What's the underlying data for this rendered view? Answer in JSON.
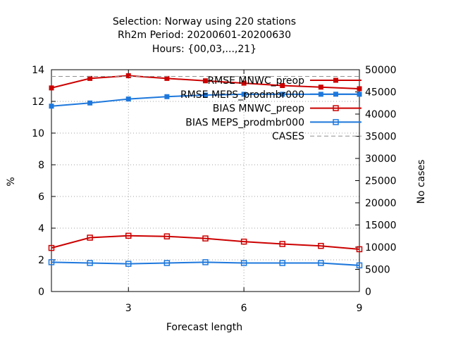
{
  "chart_data": {
    "type": "line",
    "title_lines": [
      "Selection: Norway using   220 stations",
      "Rh2m   Period: 20200601-20200630",
      "Hours: {00,03,...,21}"
    ],
    "xlabel": "Forecast length",
    "ylabel": "%",
    "y2label": "No cases",
    "xlim": [
      1,
      9
    ],
    "ylim": [
      0,
      14
    ],
    "y2lim": [
      0,
      50000
    ],
    "xticks": [
      3,
      6,
      9
    ],
    "yticks": [
      0,
      2,
      4,
      6,
      8,
      10,
      12,
      14
    ],
    "y2ticks": [
      0,
      5000,
      10000,
      15000,
      20000,
      25000,
      30000,
      35000,
      40000,
      45000,
      50000
    ],
    "grid": true,
    "legend_position": "top-right",
    "x": [
      1,
      2,
      3,
      4,
      5,
      6,
      7,
      8,
      9
    ],
    "series": [
      {
        "name": "RMSE MNWC_preop",
        "axis": "left",
        "color": "#cc0000",
        "marker": "filled-square",
        "values": [
          12.85,
          13.45,
          13.62,
          13.45,
          13.3,
          13.15,
          13.0,
          12.9,
          12.8
        ]
      },
      {
        "name": "RMSE MEPS_prodmbr000",
        "axis": "left",
        "color": "#1e78dc",
        "marker": "filled-square",
        "values": [
          11.7,
          11.9,
          12.15,
          12.3,
          12.4,
          12.45,
          12.45,
          12.45,
          12.45
        ]
      },
      {
        "name": "BIAS MNWC_preop",
        "axis": "left",
        "color": "#cc0000",
        "marker": "open-square",
        "values": [
          2.75,
          3.4,
          3.52,
          3.48,
          3.35,
          3.15,
          3.0,
          2.88,
          2.67
        ]
      },
      {
        "name": "BIAS MEPS_prodmbr000",
        "axis": "left",
        "color": "#1e78dc",
        "marker": "open-square",
        "values": [
          1.85,
          1.8,
          1.75,
          1.8,
          1.85,
          1.8,
          1.8,
          1.8,
          1.65
        ]
      },
      {
        "name": "CASES",
        "axis": "right",
        "color": "#909090",
        "marker": "none",
        "dashed": true,
        "values": [
          48500,
          48500,
          48500,
          48500,
          48500,
          48500,
          48500,
          48500,
          48500
        ]
      }
    ]
  }
}
